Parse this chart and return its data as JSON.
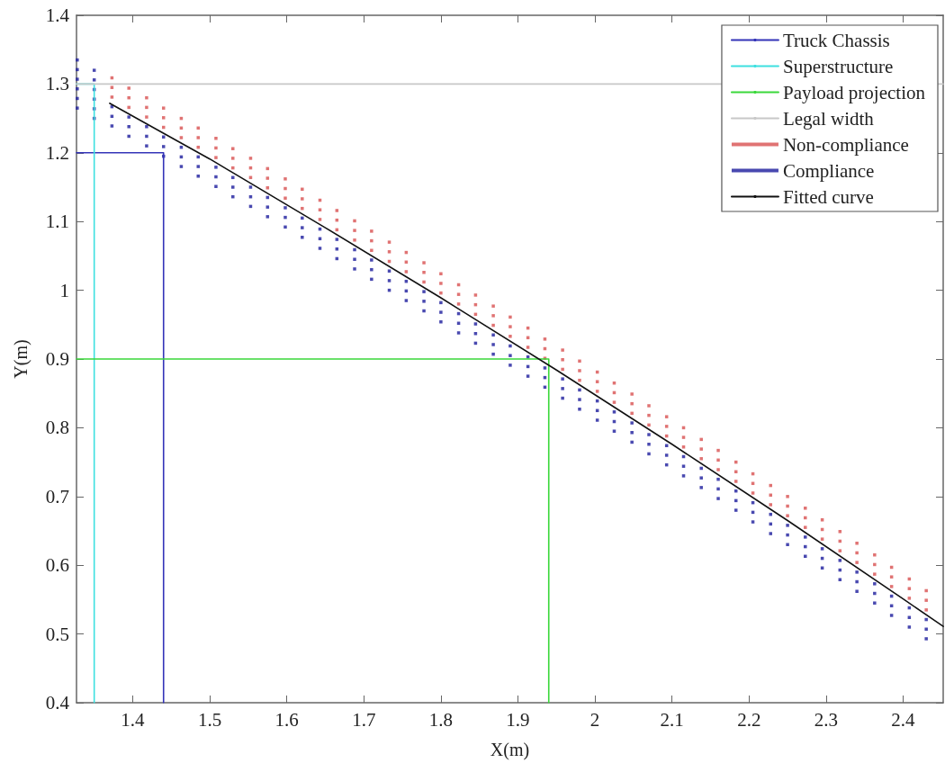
{
  "chart_data": {
    "type": "scatter",
    "xlabel": "X(m)",
    "ylabel": "Y(m)",
    "xlim": [
      1.327,
      2.452
    ],
    "xticks": [
      1.4,
      1.5,
      1.6,
      1.7,
      1.8,
      1.9,
      2,
      2.1,
      2.2,
      2.3,
      2.4
    ],
    "ylim": [
      0.4,
      1.4
    ],
    "yticks": [
      0.4,
      0.5,
      0.6,
      0.7,
      0.8,
      0.9,
      1,
      1.1,
      1.2,
      1.3,
      1.4
    ],
    "grid": false,
    "legend": "top right",
    "marker": "square",
    "series": [
      {
        "name": "Truck Chassis",
        "type": "line",
        "marker": "none",
        "color": "#3434b8",
        "x": [
          1.327,
          1.44,
          1.44
        ],
        "values": [
          1.2,
          1.2,
          0.4
        ]
      },
      {
        "name": "Superstructure",
        "type": "line",
        "marker": "none",
        "color": "#3ee0e0",
        "x": [
          1.327,
          1.35,
          1.35
        ],
        "values": [
          1.3,
          1.3,
          0.4
        ]
      },
      {
        "name": "Payload projection",
        "type": "line",
        "marker": "none",
        "color": "#3ad83a",
        "x": [
          1.327,
          1.94,
          1.94
        ],
        "values": [
          0.9,
          0.9,
          0.4
        ]
      },
      {
        "name": "Legal width",
        "type": "line",
        "marker": "none",
        "color": "#c8c8c8",
        "x": [
          1.327,
          2.452
        ],
        "values": [
          1.3,
          1.3
        ]
      },
      {
        "name": "Non-compliance",
        "color": "#d85050",
        "x": [
          1.373,
          1.373,
          1.373,
          1.395,
          1.395,
          1.395,
          1.418,
          1.418,
          1.418,
          1.44,
          1.44,
          1.44,
          1.463,
          1.463,
          1.463,
          1.485,
          1.485,
          1.485,
          1.508,
          1.508,
          1.508,
          1.53,
          1.53,
          1.53,
          1.553,
          1.553,
          1.553,
          1.575,
          1.575,
          1.575,
          1.598,
          1.598,
          1.598,
          1.62,
          1.62,
          1.62,
          1.643,
          1.643,
          1.643,
          1.665,
          1.665,
          1.665,
          1.688,
          1.688,
          1.688,
          1.71,
          1.71,
          1.71,
          1.733,
          1.733,
          1.733,
          1.755,
          1.755,
          1.755,
          1.778,
          1.778,
          1.778,
          1.8,
          1.8,
          1.8,
          1.823,
          1.823,
          1.823,
          1.845,
          1.845,
          1.845,
          1.868,
          1.868,
          1.868,
          1.89,
          1.89,
          1.89,
          1.913,
          1.913,
          1.913,
          1.935,
          1.935,
          1.935,
          1.958,
          1.958,
          1.958,
          1.98,
          1.98,
          1.98,
          2.003,
          2.003,
          2.003,
          2.025,
          2.025,
          2.025,
          2.048,
          2.048,
          2.048,
          2.07,
          2.07,
          2.07,
          2.093,
          2.093,
          2.093,
          2.115,
          2.115,
          2.115,
          2.138,
          2.138,
          2.138,
          2.16,
          2.16,
          2.16,
          2.183,
          2.183,
          2.183,
          2.205,
          2.205,
          2.205,
          2.228,
          2.228,
          2.228,
          2.25,
          2.25,
          2.25,
          2.273,
          2.273,
          2.273,
          2.295,
          2.295,
          2.295,
          2.318,
          2.318,
          2.318,
          2.34,
          2.34,
          2.34,
          2.363,
          2.363,
          2.363,
          2.385,
          2.385,
          2.385,
          2.408,
          2.408,
          2.408,
          2.43,
          2.43,
          2.43
        ],
        "values": [
          1.309,
          1.295,
          1.281,
          1.294,
          1.28,
          1.266,
          1.28,
          1.266,
          1.252,
          1.265,
          1.251,
          1.237,
          1.25,
          1.236,
          1.222,
          1.236,
          1.222,
          1.208,
          1.221,
          1.207,
          1.193,
          1.206,
          1.192,
          1.178,
          1.192,
          1.178,
          1.164,
          1.177,
          1.163,
          1.149,
          1.162,
          1.148,
          1.134,
          1.147,
          1.133,
          1.119,
          1.131,
          1.117,
          1.103,
          1.116,
          1.102,
          1.088,
          1.101,
          1.087,
          1.073,
          1.086,
          1.072,
          1.058,
          1.07,
          1.056,
          1.042,
          1.055,
          1.041,
          1.027,
          1.04,
          1.026,
          1.012,
          1.024,
          1.01,
          0.996,
          1.008,
          0.994,
          0.98,
          0.993,
          0.979,
          0.965,
          0.977,
          0.963,
          0.949,
          0.961,
          0.947,
          0.933,
          0.945,
          0.931,
          0.917,
          0.929,
          0.915,
          0.901,
          0.913,
          0.899,
          0.885,
          0.897,
          0.883,
          0.869,
          0.881,
          0.867,
          0.853,
          0.865,
          0.851,
          0.837,
          0.849,
          0.835,
          0.821,
          0.832,
          0.818,
          0.804,
          0.816,
          0.802,
          0.788,
          0.8,
          0.786,
          0.772,
          0.783,
          0.769,
          0.755,
          0.767,
          0.753,
          0.739,
          0.75,
          0.736,
          0.722,
          0.733,
          0.719,
          0.705,
          0.716,
          0.702,
          0.688,
          0.7,
          0.686,
          0.672,
          0.683,
          0.669,
          0.655,
          0.666,
          0.652,
          0.638,
          0.649,
          0.635,
          0.621,
          0.632,
          0.618,
          0.604,
          0.615,
          0.601,
          0.587,
          0.597,
          0.583,
          0.569,
          0.58,
          0.566,
          0.552,
          0.563,
          0.549,
          0.535
        ]
      },
      {
        "name": "Compliance",
        "color": "#1c1c9c",
        "x": [
          1.328,
          1.328,
          1.328,
          1.328,
          1.328,
          1.328,
          1.35,
          1.35,
          1.35,
          1.35,
          1.35,
          1.35,
          1.373,
          1.373,
          1.373,
          1.395,
          1.395,
          1.395,
          1.418,
          1.418,
          1.418,
          1.44,
          1.44,
          1.44,
          1.463,
          1.463,
          1.463,
          1.485,
          1.485,
          1.485,
          1.508,
          1.508,
          1.508,
          1.53,
          1.53,
          1.53,
          1.553,
          1.553,
          1.553,
          1.575,
          1.575,
          1.575,
          1.598,
          1.598,
          1.598,
          1.62,
          1.62,
          1.62,
          1.643,
          1.643,
          1.643,
          1.665,
          1.665,
          1.665,
          1.688,
          1.688,
          1.688,
          1.71,
          1.71,
          1.71,
          1.733,
          1.733,
          1.733,
          1.755,
          1.755,
          1.755,
          1.778,
          1.778,
          1.778,
          1.8,
          1.8,
          1.8,
          1.823,
          1.823,
          1.823,
          1.845,
          1.845,
          1.845,
          1.868,
          1.868,
          1.868,
          1.89,
          1.89,
          1.89,
          1.913,
          1.913,
          1.913,
          1.935,
          1.935,
          1.935,
          1.958,
          1.958,
          1.958,
          1.98,
          1.98,
          1.98,
          2.003,
          2.003,
          2.003,
          2.025,
          2.025,
          2.025,
          2.048,
          2.048,
          2.048,
          2.07,
          2.07,
          2.07,
          2.093,
          2.093,
          2.093,
          2.115,
          2.115,
          2.115,
          2.138,
          2.138,
          2.138,
          2.16,
          2.16,
          2.16,
          2.183,
          2.183,
          2.183,
          2.205,
          2.205,
          2.205,
          2.228,
          2.228,
          2.228,
          2.25,
          2.25,
          2.25,
          2.273,
          2.273,
          2.273,
          2.295,
          2.295,
          2.295,
          2.318,
          2.318,
          2.318,
          2.34,
          2.34,
          2.34,
          2.363,
          2.363,
          2.363,
          2.385,
          2.385,
          2.385,
          2.408,
          2.408,
          2.408,
          2.43,
          2.43,
          2.43
        ],
        "values": [
          1.335,
          1.321,
          1.307,
          1.293,
          1.279,
          1.265,
          1.32,
          1.306,
          1.292,
          1.278,
          1.264,
          1.25,
          1.267,
          1.253,
          1.239,
          1.252,
          1.238,
          1.224,
          1.238,
          1.224,
          1.21,
          1.223,
          1.209,
          1.195,
          1.208,
          1.194,
          1.18,
          1.194,
          1.18,
          1.166,
          1.179,
          1.165,
          1.151,
          1.164,
          1.15,
          1.136,
          1.15,
          1.136,
          1.122,
          1.135,
          1.121,
          1.107,
          1.12,
          1.106,
          1.092,
          1.105,
          1.091,
          1.077,
          1.089,
          1.075,
          1.061,
          1.074,
          1.06,
          1.046,
          1.059,
          1.045,
          1.031,
          1.044,
          1.03,
          1.016,
          1.028,
          1.014,
          1,
          1.013,
          0.999,
          0.985,
          0.998,
          0.984,
          0.97,
          0.982,
          0.968,
          0.954,
          0.966,
          0.952,
          0.938,
          0.951,
          0.937,
          0.923,
          0.935,
          0.921,
          0.907,
          0.919,
          0.905,
          0.891,
          0.903,
          0.889,
          0.875,
          0.887,
          0.873,
          0.859,
          0.871,
          0.857,
          0.843,
          0.855,
          0.841,
          0.827,
          0.839,
          0.825,
          0.811,
          0.823,
          0.809,
          0.795,
          0.807,
          0.793,
          0.779,
          0.79,
          0.776,
          0.762,
          0.774,
          0.76,
          0.746,
          0.758,
          0.744,
          0.73,
          0.741,
          0.727,
          0.713,
          0.725,
          0.711,
          0.697,
          0.708,
          0.694,
          0.68,
          0.691,
          0.677,
          0.663,
          0.674,
          0.66,
          0.646,
          0.658,
          0.644,
          0.63,
          0.641,
          0.627,
          0.613,
          0.624,
          0.61,
          0.596,
          0.607,
          0.593,
          0.579,
          0.59,
          0.576,
          0.562,
          0.573,
          0.559,
          0.545,
          0.555,
          0.541,
          0.527,
          0.538,
          0.524,
          0.51,
          0.521,
          0.507,
          0.493
        ]
      },
      {
        "name": "Fitted curve",
        "type": "line",
        "marker": "none",
        "color": "#111111",
        "x": [
          1.37,
          1.5,
          1.65,
          1.8,
          1.95,
          2.1,
          2.25,
          2.4,
          2.452
        ],
        "values": [
          1.272,
          1.191,
          1.091,
          0.989,
          0.884,
          0.776,
          0.665,
          0.551,
          0.511
        ]
      }
    ]
  }
}
